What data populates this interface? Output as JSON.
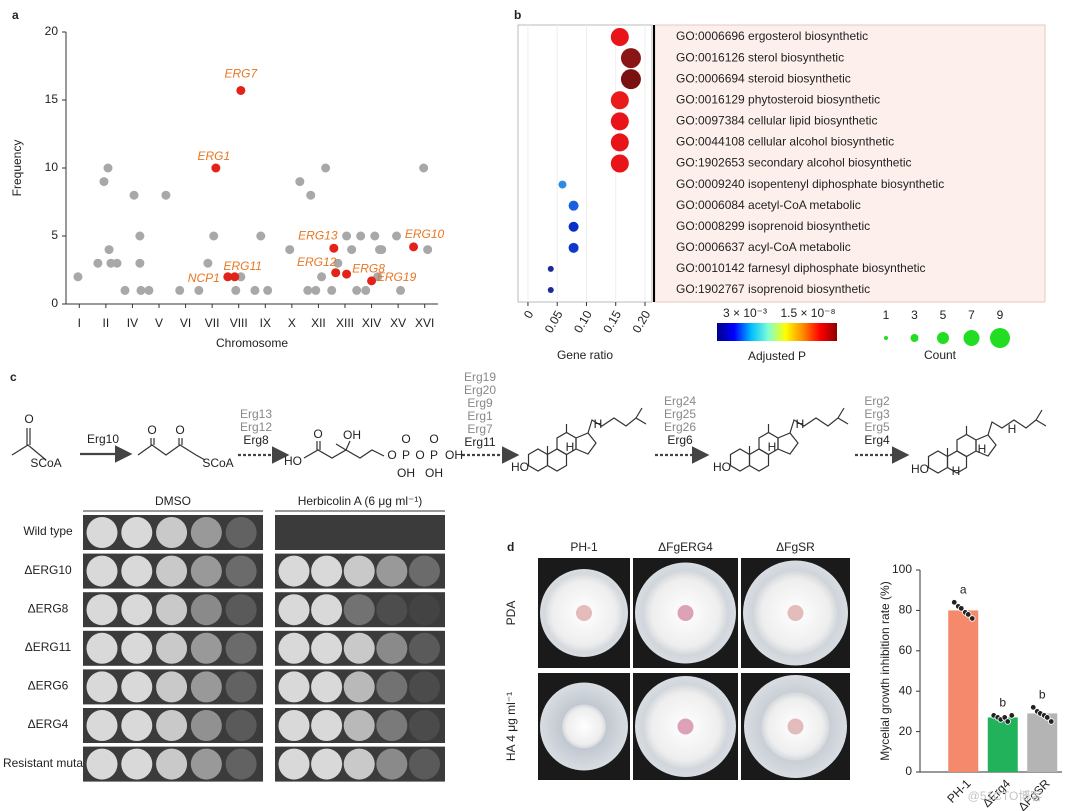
{
  "panel_labels": [
    "a",
    "b",
    "c",
    "d"
  ],
  "chart_data": [
    {
      "type": "scatter",
      "ylabel": "Frequency",
      "xlabel": "Chromosome",
      "xlim": [
        0.5,
        14.5
      ],
      "xticks": [
        {
          "value": 1,
          "label": "I"
        },
        {
          "value": 2,
          "label": "II"
        },
        {
          "value": 3,
          "label": "IV"
        },
        {
          "value": 4,
          "label": "V"
        },
        {
          "value": 5,
          "label": "VI"
        },
        {
          "value": 6,
          "label": "VII"
        },
        {
          "value": 7,
          "label": "VIII"
        },
        {
          "value": 8,
          "label": "IX"
        },
        {
          "value": 9,
          "label": "X"
        },
        {
          "value": 10,
          "label": "XII"
        },
        {
          "value": 11,
          "label": "XIII"
        },
        {
          "value": 12,
          "label": "XIV"
        },
        {
          "value": 13,
          "label": "XV"
        },
        {
          "value": 14,
          "label": "XVI"
        }
      ],
      "ylim": [
        0,
        20
      ],
      "yticks": [
        0,
        5,
        10,
        15,
        20
      ],
      "series": [
        {
          "color": "#a8a8a8",
          "x": [
            0.95,
            1.7,
            1.93,
            2.08,
            2.12,
            2.19,
            2.42,
            2.72,
            3.06,
            3.28,
            3.28,
            3.32,
            3.62,
            4.26,
            4.78,
            5.5,
            5.84,
            6.06,
            6.89,
            7.08,
            7.61,
            7.83,
            8.09,
            8.92,
            9.3,
            9.6,
            9.71,
            9.9,
            10.12,
            10.27,
            10.5,
            10.73,
            11.06,
            11.25,
            11.44,
            11.59,
            11.78,
            12.12,
            12.23,
            12.3,
            12.38,
            12.94,
            13.09,
            13.96,
            14.11
          ],
          "values": [
            2,
            3,
            9,
            10,
            4,
            3,
            3,
            1,
            8,
            5,
            3,
            1,
            1,
            8,
            1,
            1,
            3,
            5,
            1,
            2,
            1,
            5,
            1,
            4,
            9,
            1,
            8,
            1,
            2,
            10,
            1,
            3,
            5,
            4,
            1,
            5,
            1,
            5,
            2,
            4,
            4,
            5,
            1,
            10,
            4
          ]
        },
        {
          "color": "#e2231a",
          "label_color": "#e87722",
          "x": [
            7.08,
            6.14,
            6.59,
            6.85,
            10.58,
            10.65,
            11.06,
            12.0,
            13.58
          ],
          "values": [
            15.7,
            10,
            2,
            2,
            4.1,
            2.3,
            2.2,
            1.7,
            4.2
          ],
          "labels": [
            "ERG7",
            "ERG1",
            "NCP1",
            "ERG11",
            "ERG13",
            "ERG12",
            "ERG8",
            "ERG19",
            "ERG10"
          ]
        }
      ]
    },
    {
      "type": "dot",
      "xlabel": "Gene ratio",
      "xlim": [
        -0.017,
        0.212
      ],
      "xticks": [
        0,
        0.05,
        {
          "value": 0.1,
          "label": "0.10"
        },
        0.15,
        {
          "value": 0.2,
          "label": "0.20"
        }
      ],
      "categories": [
        "GO:0006696 ergosterol biosynthetic",
        "GO:0016126 sterol biosynthetic",
        "GO:0006694 steroid biosynthetic",
        "GO:0016129 phytosteroid biosynthetic",
        "GO:0097384 cellular lipid biosynthetic",
        "GO:0044108 cellular alcohol biosynthetic",
        "GO:1902653 secondary alcohol biosynthetic",
        "GO:0009240 isopentenyl diphosphate biosynthetic",
        "GO:0006084 acetyl-CoA metabolic",
        "GO:0008299 isoprenoid biosynthetic",
        "GO:0006637 acyl-CoA metabolic",
        "GO:0010142 farnesyl diphosphate biosynthetic",
        "GO:1902767 isoprenoid biosynthetic"
      ],
      "values": [
        0.157,
        0.176,
        0.176,
        0.157,
        0.157,
        0.157,
        0.157,
        0.059,
        0.078,
        0.078,
        0.078,
        0.039,
        0.039
      ],
      "counts": [
        8,
        9,
        9,
        8,
        8,
        8,
        8,
        3,
        4,
        4,
        4,
        2,
        2
      ],
      "colors": [
        "#e8141a",
        "#8b1414",
        "#7a1010",
        "#ea1a1a",
        "#e8141a",
        "#e8141a",
        "#e8141a",
        "#2a8de0",
        "#1a5fe0",
        "#0a2fc8",
        "#1038c8",
        "#1a2a9a",
        "#1a2a9a"
      ],
      "colorbar": {
        "title": "Adjusted P",
        "labels": [
          "3 × 10⁻³",
          "1.5 × 10⁻⁸"
        ],
        "colors": [
          "#00008b",
          "#0000ff",
          "#00bfff",
          "#7fffd4",
          "#ffff00",
          "#ff8c00",
          "#ff0000",
          "#8b0000"
        ]
      },
      "size_legend": {
        "title": "Count",
        "values": [
          1,
          3,
          5,
          7,
          9
        ],
        "color": "#22dd22"
      }
    },
    {
      "type": "bar",
      "ylabel": "Mycelial growth inhibition rate (%)",
      "categories": [
        "PH-1",
        "ΔErg4",
        "ΔFgSR"
      ],
      "values": [
        80,
        27,
        29
      ],
      "colors": [
        "#f4896b",
        "#22b25c",
        "#b4b4b4"
      ],
      "annotations": [
        "a",
        "b",
        "b"
      ],
      "points": [
        [
          84,
          82,
          81,
          79,
          78,
          76
        ],
        [
          28,
          27,
          26,
          27,
          25,
          28
        ],
        [
          32,
          30,
          29,
          28,
          27,
          25
        ]
      ],
      "ylim": [
        0,
        100
      ],
      "yticks": [
        0,
        20,
        40,
        60,
        80,
        100
      ]
    }
  ],
  "pathway": {
    "steps": [
      {
        "enzymes": [
          "Erg10"
        ]
      },
      {
        "enzymes": [
          "Erg13",
          "Erg12",
          "Erg8"
        ]
      },
      {
        "enzymes": [
          "Erg19",
          "Erg20",
          "Erg9",
          "Erg1",
          "Erg7",
          "Erg11"
        ]
      },
      {
        "enzymes": [
          "Erg24",
          "Erg25",
          "Erg26",
          "Erg6"
        ]
      },
      {
        "enzymes": [
          "Erg2",
          "Erg3",
          "Erg5",
          "Erg4"
        ]
      }
    ],
    "molecules": [
      [
        "O",
        "SCoA"
      ],
      [
        "O",
        "O",
        "SCoA"
      ],
      [
        "HO",
        "O",
        "OH",
        "O",
        "P",
        "O",
        "P",
        "OH",
        "O",
        "O",
        "OH",
        "OH"
      ],
      [
        "HO",
        "H",
        "H"
      ],
      [
        "HO",
        "H",
        "H"
      ],
      [
        "HO",
        "H",
        "H",
        "H"
      ]
    ]
  },
  "plates": {
    "columns": [
      "DMSO",
      "Herbicolin A (6 μg ml⁻¹)"
    ],
    "rows": [
      "Wild type",
      "ΔERG10",
      "ΔERG8",
      "ΔERG11",
      "ΔERG6",
      "ΔERG4",
      "Resistant mutant"
    ]
  },
  "dishes": {
    "columns": [
      "PH-1",
      "ΔFgERG4",
      "ΔFgSR"
    ],
    "rows": [
      "PDA",
      "HA  4 μg ml⁻¹"
    ]
  },
  "watermark": "@51CTO博客"
}
